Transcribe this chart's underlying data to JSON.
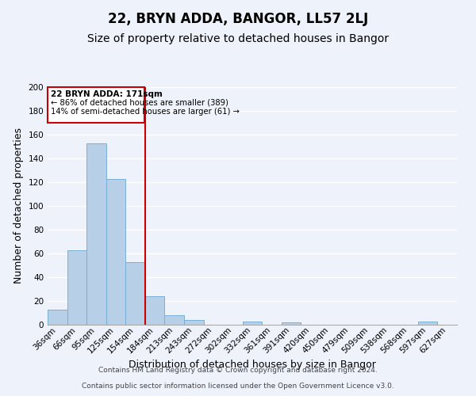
{
  "title": "22, BRYN ADDA, BANGOR, LL57 2LJ",
  "subtitle": "Size of property relative to detached houses in Bangor",
  "xlabel": "Distribution of detached houses by size in Bangor",
  "ylabel": "Number of detached properties",
  "categories": [
    "36sqm",
    "66sqm",
    "95sqm",
    "125sqm",
    "154sqm",
    "184sqm",
    "213sqm",
    "243sqm",
    "272sqm",
    "302sqm",
    "332sqm",
    "361sqm",
    "391sqm",
    "420sqm",
    "450sqm",
    "479sqm",
    "509sqm",
    "538sqm",
    "568sqm",
    "597sqm",
    "627sqm"
  ],
  "values": [
    13,
    63,
    153,
    123,
    53,
    24,
    8,
    4,
    0,
    0,
    3,
    0,
    2,
    0,
    0,
    0,
    0,
    0,
    0,
    3,
    0
  ],
  "bar_color": "#b8cfe8",
  "bar_edge_color": "#7aafd4",
  "ylim": [
    0,
    200
  ],
  "yticks": [
    0,
    20,
    40,
    60,
    80,
    100,
    120,
    140,
    160,
    180,
    200
  ],
  "vline_color": "#cc0000",
  "annotation_title": "22 BRYN ADDA: 171sqm",
  "annotation_line1": "← 86% of detached houses are smaller (389)",
  "annotation_line2": "14% of semi-detached houses are larger (61) →",
  "annotation_box_color": "#cc0000",
  "footer_line1": "Contains HM Land Registry data © Crown copyright and database right 2024.",
  "footer_line2": "Contains public sector information licensed under the Open Government Licence v3.0.",
  "background_color": "#eef2fb",
  "grid_color": "#ffffff",
  "title_fontsize": 12,
  "subtitle_fontsize": 10,
  "label_fontsize": 9,
  "tick_fontsize": 7.5,
  "footer_fontsize": 6.5
}
